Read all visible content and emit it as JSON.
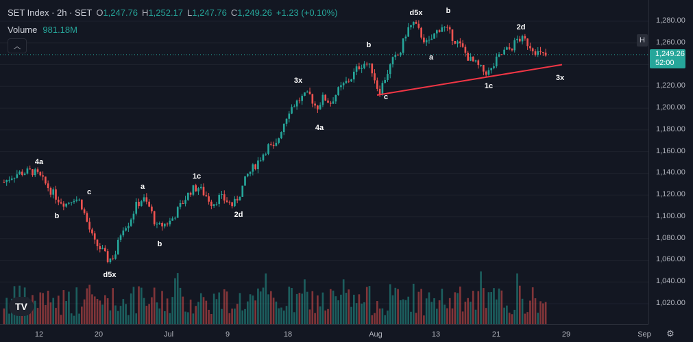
{
  "legend": {
    "symbol": "SET Index · 2h · SET",
    "o_label": "O",
    "o_val": "1,247.76",
    "h_label": "H",
    "h_val": "1,252.17",
    "l_label": "L",
    "l_val": "1,247.76",
    "c_label": "C",
    "c_val": "1,249.26",
    "change": "+1.23 (+0.10%)"
  },
  "volume": {
    "label": "Volume",
    "value": "981.18M"
  },
  "price_axis": {
    "ticks": [
      "1,280.00",
      "1,260.00",
      "1,240.00",
      "1,220.00",
      "1,200.00",
      "1,180.00",
      "1,160.00",
      "1,140.00",
      "1,120.00",
      "1,100.00",
      "1,080.00",
      "1,060.00",
      "1,040.00",
      "1,020.00"
    ],
    "last_price": "1,249.26",
    "countdown": "52:00",
    "h_button": "H"
  },
  "time_axis": {
    "ticks": [
      "12",
      "20",
      "Jul",
      "9",
      "18",
      "Aug",
      "13",
      "21",
      "29",
      "Sep"
    ]
  },
  "annotations": [
    "4a",
    "b",
    "c",
    "d5x",
    "a",
    "b",
    "1c",
    "2d",
    "3x",
    "4a",
    "b",
    "c",
    "d5x",
    "a",
    "b",
    "1c",
    "2d",
    "3x"
  ],
  "colors": {
    "up": "#26a69a",
    "down": "#ef5350",
    "bg": "#131722",
    "trend": "#f23645"
  },
  "chart_data": {
    "type": "candlestick",
    "title": "SET Index · 2h · SET",
    "ylim": [
      1020,
      1290
    ],
    "x": [
      "12",
      "20",
      "Jul",
      "9",
      "18",
      "Aug",
      "13",
      "21",
      "29",
      "Sep"
    ],
    "close_path": [
      1132,
      1137,
      1140,
      1141,
      1142,
      1138,
      1130,
      1122,
      1115,
      1112,
      1118,
      1114,
      1094,
      1076,
      1070,
      1060,
      1065,
      1090,
      1095,
      1110,
      1117,
      1108,
      1090,
      1093,
      1096,
      1106,
      1116,
      1125,
      1127,
      1120,
      1112,
      1118,
      1115,
      1110,
      1122,
      1138,
      1146,
      1155,
      1165,
      1162,
      1182,
      1198,
      1205,
      1210,
      1212,
      1200,
      1210,
      1205,
      1215,
      1222,
      1228,
      1238,
      1242,
      1235,
      1214,
      1230,
      1244,
      1250,
      1272,
      1278,
      1268,
      1258,
      1268,
      1276,
      1270,
      1262,
      1255,
      1245,
      1240,
      1234,
      1233,
      1245,
      1252,
      1255,
      1264,
      1262,
      1256,
      1250,
      1248
    ],
    "trendline": [
      [
        1212,
        1240
      ]
    ],
    "last": 1249.26
  }
}
